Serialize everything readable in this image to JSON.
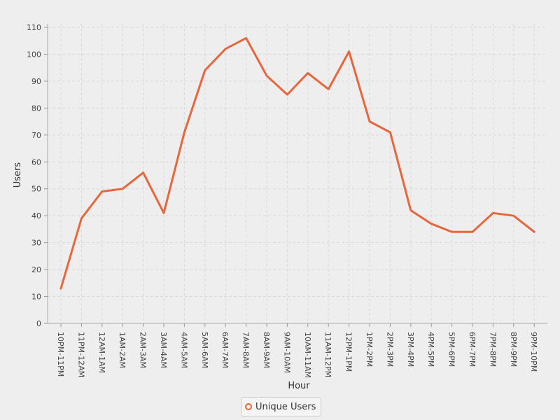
{
  "chart_data": {
    "type": "line",
    "xlabel": "Hour",
    "ylabel": "Users",
    "ylim": [
      0,
      110
    ],
    "y_ticks": [
      0,
      10,
      20,
      30,
      40,
      50,
      60,
      70,
      80,
      90,
      100,
      110
    ],
    "grid": true,
    "legend_position": "bottom",
    "categories": [
      "10PM-11PM",
      "11PM-12AM",
      "12AM-1AM",
      "1AM-2AM",
      "2AM-3AM",
      "3AM-4AM",
      "4AM-5AM",
      "5AM-6AM",
      "6AM-7AM",
      "7AM-8AM",
      "8AM-9AM",
      "9AM-10AM",
      "10AM-11AM",
      "11AM-12PM",
      "12PM-1PM",
      "1PM-2PM",
      "2PM-3PM",
      "3PM-4PM",
      "4PM-5PM",
      "5PM-6PM",
      "6PM-7PM",
      "7PM-8PM",
      "8PM-9PM",
      "9PM-10PM"
    ],
    "series": [
      {
        "name": "Unique Users",
        "color": "#e8663c",
        "values": [
          13,
          39,
          49,
          50,
          56,
          41,
          71,
          94,
          102,
          106,
          92,
          85,
          93,
          87,
          101,
          75,
          71,
          42,
          37,
          34,
          34,
          41,
          40,
          34
        ]
      }
    ]
  }
}
